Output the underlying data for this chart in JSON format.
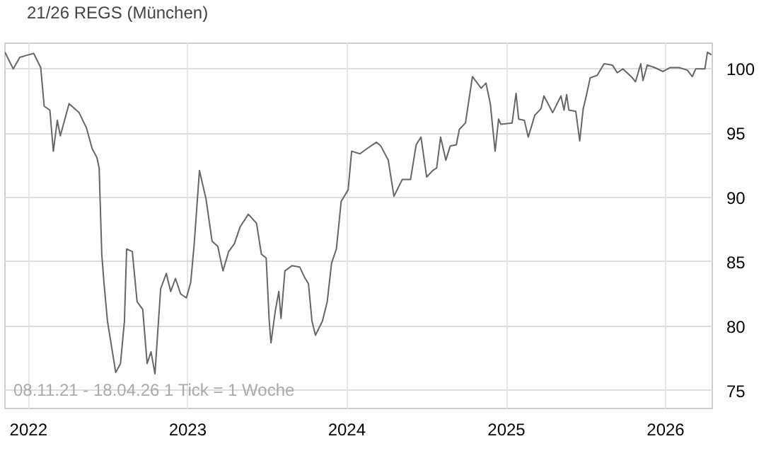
{
  "chart_data": {
    "type": "line",
    "x": [
      "2021-11-08",
      "2021-11-27",
      "2021-12-12",
      "2022-01-01",
      "2022-01-13",
      "2022-01-29",
      "2022-02-06",
      "2022-02-19",
      "2022-02-27",
      "2022-03-08",
      "2022-03-15",
      "2022-04-04",
      "2022-04-27",
      "2022-05-14",
      "2022-05-27",
      "2022-06-07",
      "2022-06-12",
      "2022-06-18",
      "2022-06-23",
      "2022-07-01",
      "2022-07-20",
      "2022-07-31",
      "2022-08-09",
      "2022-08-14",
      "2022-08-27",
      "2022-09-07",
      "2022-09-20",
      "2022-09-30",
      "2022-10-09",
      "2022-10-18",
      "2022-10-31",
      "2022-11-13",
      "2022-11-23",
      "2022-12-04",
      "2022-12-16",
      "2022-12-29",
      "2023-01-08",
      "2023-01-16",
      "2023-01-28",
      "2023-02-12",
      "2023-02-26",
      "2023-03-11",
      "2023-03-23",
      "2023-04-05",
      "2023-04-18",
      "2023-05-01",
      "2023-05-20",
      "2023-06-08",
      "2023-06-19",
      "2023-06-30",
      "2023-07-07",
      "2023-07-11",
      "2023-07-21",
      "2023-07-29",
      "2023-08-03",
      "2023-08-12",
      "2023-08-28",
      "2023-09-15",
      "2023-09-26",
      "2023-10-05",
      "2023-10-13",
      "2023-10-21",
      "2023-11-06",
      "2023-11-17",
      "2023-11-27",
      "2023-12-08",
      "2023-12-19",
      "2024-01-04",
      "2024-01-12",
      "2024-01-31",
      "2024-02-16",
      "2024-03-09",
      "2024-03-19",
      "2024-04-05",
      "2024-04-18",
      "2024-05-07",
      "2024-05-26",
      "2024-06-08",
      "2024-06-19",
      "2024-07-02",
      "2024-07-16",
      "2024-07-25",
      "2024-08-03",
      "2024-08-15",
      "2024-08-25",
      "2024-09-08",
      "2024-09-15",
      "2024-09-29",
      "2024-10-15",
      "2024-11-04",
      "2024-11-15",
      "2024-11-25",
      "2024-11-30",
      "2024-12-06",
      "2024-12-14",
      "2024-12-19",
      "2025-01-14",
      "2025-01-23",
      "2025-01-29",
      "2025-02-11",
      "2025-02-20",
      "2025-03-07",
      "2025-03-21",
      "2025-03-28",
      "2025-04-17",
      "2025-05-06",
      "2025-05-13",
      "2025-05-19",
      "2025-05-24",
      "2025-06-09",
      "2025-06-18",
      "2025-06-26",
      "2025-07-03",
      "2025-07-12",
      "2025-07-28",
      "2025-08-13",
      "2025-09-01",
      "2025-09-12",
      "2025-09-25",
      "2025-10-17",
      "2025-10-24",
      "2025-11-05",
      "2025-11-10",
      "2025-11-20",
      "2025-12-07",
      "2025-12-26",
      "2026-01-11",
      "2026-02-01",
      "2026-02-20",
      "2026-03-03",
      "2026-03-11",
      "2026-04-01",
      "2026-04-07",
      "2026-04-16"
    ],
    "series": [
      {
        "name": "21/26 REGS (München)",
        "color": "#666666",
        "values": [
          101.3,
          100.0,
          100.9,
          101.1,
          101.2,
          100.1,
          97.1,
          96.8,
          93.6,
          96.0,
          94.8,
          97.3,
          96.6,
          95.4,
          93.8,
          93.1,
          92.3,
          85.6,
          83.4,
          80.4,
          76.4,
          77.1,
          80.4,
          86.0,
          85.8,
          81.9,
          81.3,
          77.1,
          78.0,
          76.3,
          82.9,
          84.1,
          82.7,
          83.7,
          82.5,
          82.2,
          83.4,
          86.4,
          92.1,
          89.9,
          86.6,
          86.2,
          84.3,
          85.8,
          86.4,
          87.7,
          88.7,
          88.0,
          85.6,
          85.3,
          80.4,
          78.7,
          81.2,
          82.7,
          80.6,
          84.3,
          84.7,
          84.6,
          83.8,
          83.3,
          80.4,
          79.3,
          80.4,
          81.9,
          84.9,
          86.0,
          89.7,
          90.6,
          93.6,
          93.4,
          93.8,
          94.3,
          94.0,
          92.9,
          90.1,
          91.4,
          91.4,
          94.1,
          94.7,
          91.6,
          92.1,
          92.3,
          94.7,
          92.9,
          94.0,
          94.1,
          95.3,
          95.8,
          99.4,
          98.5,
          98.9,
          97.3,
          95.6,
          93.6,
          96.1,
          95.7,
          95.8,
          98.1,
          96.1,
          96.0,
          94.7,
          96.4,
          96.9,
          97.9,
          96.6,
          97.9,
          96.8,
          98.0,
          96.8,
          96.7,
          94.4,
          96.9,
          97.9,
          99.3,
          99.5,
          100.4,
          100.3,
          99.7,
          100.0,
          99.3,
          99.0,
          100.4,
          99.1,
          100.3,
          100.1,
          99.8,
          100.1,
          100.1,
          99.9,
          99.4,
          100.0,
          100.0,
          101.3,
          101.1
        ]
      }
    ],
    "xlim": [
      "2021-11-08",
      "2026-04-18"
    ],
    "xticks": [
      {
        "value": "2022-01-01",
        "label": "2022"
      },
      {
        "value": "2023-01-01",
        "label": "2023"
      },
      {
        "value": "2024-01-01",
        "label": "2024"
      },
      {
        "value": "2025-01-01",
        "label": "2025"
      },
      {
        "value": "2026-01-01",
        "label": "2026"
      }
    ],
    "ylim": [
      73.6,
      102
    ],
    "yticks": [
      75,
      80,
      85,
      90,
      95,
      100
    ],
    "grid": true,
    "legend": "top left",
    "annotations": [
      "08.11.21 - 18.04.26   1 Tick = 1 Woche"
    ]
  }
}
